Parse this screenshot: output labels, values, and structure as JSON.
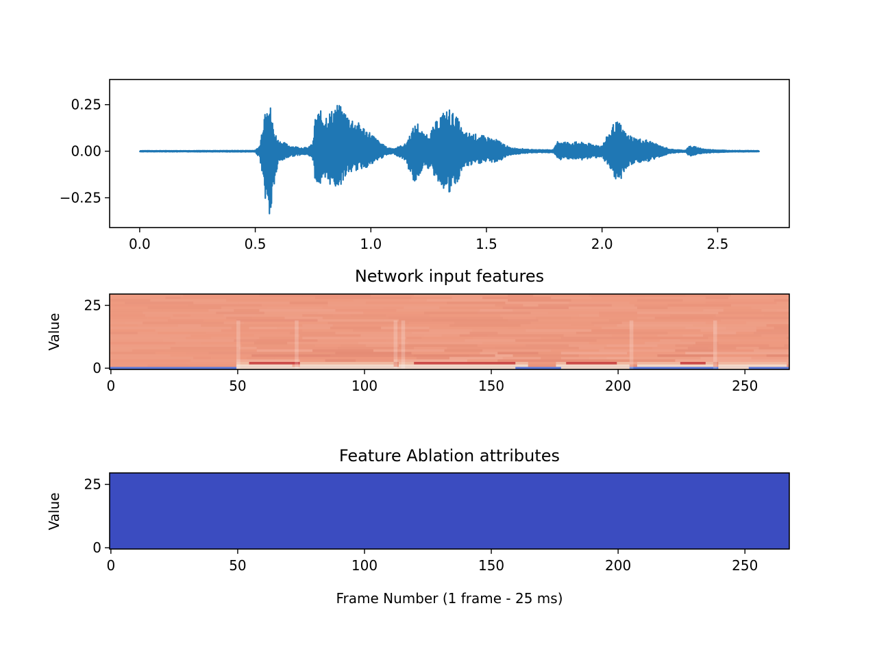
{
  "chart_data": [
    {
      "type": "line",
      "title": "",
      "xlabel": "",
      "ylabel": "",
      "xlim": [
        -0.13,
        2.81
      ],
      "ylim": [
        -0.41,
        0.385
      ],
      "xticks": [
        0.0,
        0.5,
        1.0,
        1.5,
        2.0,
        2.5
      ],
      "xtick_labels": [
        "0.0",
        "0.5",
        "1.0",
        "1.5",
        "2.0",
        "2.5"
      ],
      "yticks": [
        0.25,
        0.0,
        -0.25
      ],
      "ytick_labels": [
        "0.25",
        "0.00",
        "−0.25"
      ],
      "color": "#1f77b4",
      "grid": false,
      "envelope": {
        "x": [
          0.0,
          0.2,
          0.5,
          0.52,
          0.55,
          0.565,
          0.58,
          0.6,
          0.62,
          0.65,
          0.7,
          0.73,
          0.75,
          0.76,
          0.78,
          0.8,
          0.83,
          0.85,
          0.87,
          0.9,
          0.95,
          1.0,
          1.03,
          1.07,
          1.1,
          1.15,
          1.18,
          1.2,
          1.23,
          1.26,
          1.3,
          1.34,
          1.38,
          1.4,
          1.43,
          1.46,
          1.5,
          1.55,
          1.6,
          1.7,
          1.79,
          1.81,
          1.85,
          1.9,
          1.95,
          2.0,
          2.05,
          2.07,
          2.09,
          2.1,
          2.15,
          2.2,
          2.25,
          2.3,
          2.36,
          2.38,
          2.4,
          2.45,
          2.55,
          2.68
        ],
        "upper": [
          0.003,
          0.003,
          0.004,
          0.03,
          0.33,
          0.25,
          0.12,
          0.06,
          0.05,
          0.03,
          0.02,
          0.02,
          0.05,
          0.2,
          0.22,
          0.2,
          0.22,
          0.26,
          0.24,
          0.2,
          0.15,
          0.1,
          0.06,
          0.02,
          0.015,
          0.04,
          0.12,
          0.16,
          0.09,
          0.11,
          0.2,
          0.23,
          0.17,
          0.1,
          0.1,
          0.09,
          0.08,
          0.06,
          0.02,
          0.008,
          0.008,
          0.06,
          0.05,
          0.05,
          0.04,
          0.03,
          0.15,
          0.16,
          0.13,
          0.1,
          0.07,
          0.06,
          0.03,
          0.01,
          0.005,
          0.03,
          0.025,
          0.01,
          0.004,
          0.003
        ],
        "lower": [
          -0.003,
          -0.003,
          -0.004,
          -0.04,
          -0.32,
          -0.38,
          -0.2,
          -0.07,
          -0.05,
          -0.03,
          -0.02,
          -0.02,
          -0.05,
          -0.17,
          -0.19,
          -0.18,
          -0.18,
          -0.2,
          -0.18,
          -0.12,
          -0.1,
          -0.08,
          -0.05,
          -0.02,
          -0.015,
          -0.05,
          -0.16,
          -0.17,
          -0.07,
          -0.11,
          -0.18,
          -0.24,
          -0.16,
          -0.09,
          -0.08,
          -0.07,
          -0.06,
          -0.06,
          -0.02,
          -0.008,
          -0.008,
          -0.05,
          -0.04,
          -0.05,
          -0.04,
          -0.03,
          -0.15,
          -0.18,
          -0.13,
          -0.1,
          -0.06,
          -0.06,
          -0.03,
          -0.01,
          -0.005,
          -0.03,
          -0.02,
          -0.01,
          -0.004,
          -0.003
        ]
      }
    },
    {
      "type": "heatmap",
      "title": "Network input features",
      "xlabel": "",
      "ylabel": "Value",
      "xlim": [
        -0.5,
        267.5
      ],
      "ylim": [
        -0.5,
        29.5
      ],
      "xticks": [
        0,
        50,
        100,
        150,
        200,
        250
      ],
      "xtick_labels": [
        "0",
        "50",
        "100",
        "150",
        "200",
        "250"
      ],
      "yticks": [
        25,
        0
      ],
      "ytick_labels": [
        "25",
        "0"
      ],
      "colormap": "coolwarm",
      "rows": 30,
      "cols": 268,
      "base_color": "#ee9a80",
      "bottom_row_color": "#5a78d8",
      "bright_row_color": "#f0b8a0",
      "dark_segment_color": "#c0282c",
      "light_segment_color": "#f2d8c8"
    },
    {
      "type": "heatmap",
      "title": "Feature Ablation attributes",
      "xlabel": "Frame Number (1 frame - 25 ms)",
      "ylabel": "Value",
      "xlim": [
        -0.5,
        267.5
      ],
      "ylim": [
        -0.5,
        29.5
      ],
      "xticks": [
        0,
        50,
        100,
        150,
        200,
        250
      ],
      "xtick_labels": [
        "0",
        "50",
        "100",
        "150",
        "200",
        "250"
      ],
      "yticks": [
        25,
        0
      ],
      "ytick_labels": [
        "25",
        "0"
      ],
      "colormap": "coolwarm",
      "fill_color": "#3b4cc0"
    }
  ]
}
